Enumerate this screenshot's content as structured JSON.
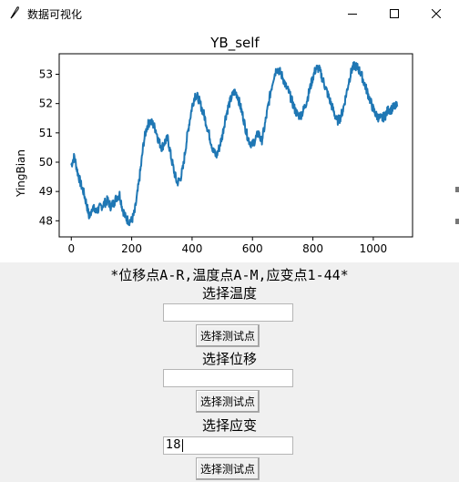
{
  "window": {
    "title": "数据可视化",
    "icons": {
      "app": "feather-icon",
      "minimize": "minimize-icon",
      "maximize": "maximize-icon",
      "close": "close-icon"
    }
  },
  "chart_data": {
    "type": "line",
    "title": "YB_self",
    "xlabel": "",
    "ylabel": "YingBian",
    "xlim": [
      -40,
      1130
    ],
    "ylim": [
      47.45,
      53.7
    ],
    "xticks": [
      0,
      200,
      400,
      600,
      800,
      1000
    ],
    "yticks": [
      48,
      49,
      50,
      51,
      52,
      53
    ],
    "grid": false,
    "color": "#1f77b4",
    "series": [
      {
        "x": [
          0,
          10,
          20,
          30,
          40,
          50,
          60,
          70,
          80,
          90,
          100,
          110,
          120,
          130,
          140,
          150,
          160,
          170,
          180,
          190,
          200,
          210,
          220,
          230,
          240,
          250,
          260,
          270,
          280,
          290,
          300,
          310,
          320,
          330,
          340,
          350,
          360,
          370,
          380,
          390,
          400,
          410,
          420,
          430,
          440,
          450,
          460,
          470,
          480,
          490,
          500,
          510,
          520,
          530,
          540,
          550,
          560,
          570,
          580,
          590,
          600,
          610,
          620,
          630,
          640,
          650,
          660,
          670,
          680,
          690,
          700,
          710,
          720,
          730,
          740,
          750,
          760,
          770,
          780,
          790,
          800,
          810,
          820,
          830,
          840,
          850,
          860,
          870,
          880,
          890,
          900,
          910,
          920,
          930,
          940,
          950,
          960,
          970,
          980,
          990,
          1000,
          1010,
          1020,
          1030,
          1040,
          1050,
          1060,
          1070,
          1080
        ],
        "y": [
          49.9,
          50.2,
          49.7,
          49.3,
          49.0,
          48.6,
          48.1,
          48.5,
          48.3,
          48.4,
          48.5,
          48.6,
          48.7,
          48.5,
          48.6,
          48.8,
          48.9,
          48.4,
          48.1,
          48.0,
          48.0,
          48.3,
          49.0,
          49.8,
          50.7,
          51.2,
          51.4,
          51.3,
          51.1,
          50.7,
          50.5,
          50.7,
          50.8,
          50.2,
          49.7,
          49.3,
          49.4,
          49.8,
          50.6,
          51.3,
          51.9,
          52.3,
          52.2,
          51.9,
          51.6,
          51.2,
          50.8,
          50.4,
          50.2,
          50.5,
          50.9,
          51.5,
          51.9,
          52.2,
          52.4,
          52.3,
          51.9,
          51.5,
          51.0,
          50.7,
          50.6,
          50.8,
          51.0,
          50.7,
          51.2,
          51.8,
          52.4,
          52.9,
          53.2,
          53.1,
          52.9,
          52.6,
          52.4,
          52.1,
          51.8,
          51.6,
          51.6,
          51.8,
          52.1,
          52.5,
          52.9,
          53.2,
          53.2,
          52.9,
          52.6,
          52.3,
          52.0,
          51.7,
          51.4,
          51.5,
          51.8,
          52.3,
          52.8,
          53.2,
          53.3,
          53.2,
          53.0,
          52.7,
          52.4,
          52.1,
          51.8,
          51.6,
          51.5,
          51.5,
          51.6,
          51.8,
          51.8,
          51.9,
          51.9
        ]
      }
    ]
  },
  "controls": {
    "hint": "*位移点A-R,温度点A-M,应变点1-44*",
    "temperature_label": "选择温度",
    "temperature_value": "",
    "displacement_label": "选择位移",
    "displacement_value": "",
    "strain_label": "选择应变",
    "strain_value": "18",
    "select_button_label": "选择测试点"
  }
}
